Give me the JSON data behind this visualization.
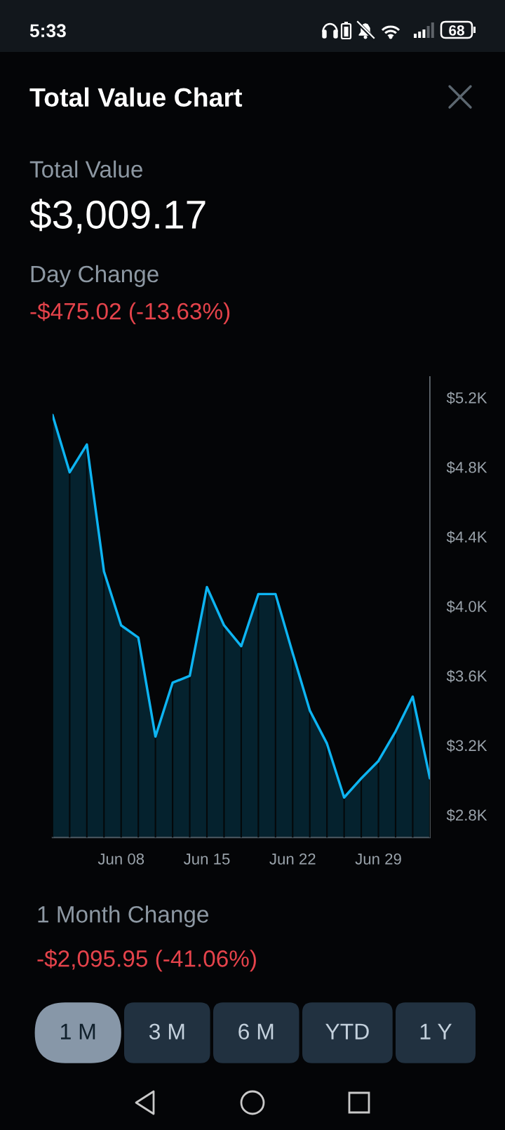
{
  "chart_data": {
    "type": "area",
    "title": "Total Value Chart",
    "annotations": [
      "5:33",
      "68",
      "Total Value",
      "$3,009.17",
      "Day Change",
      "-$475.02 (-13.63%)",
      "1 Month Change",
      "-$2,095.95 (-41.06%)",
      "1 M",
      "3 M",
      "6 M",
      "YTD",
      "1 Y"
    ],
    "categories": [
      null,
      null,
      null,
      null,
      "Jun 08",
      null,
      null,
      null,
      null,
      "Jun 15",
      null,
      null,
      null,
      null,
      "Jun 22",
      null,
      null,
      null,
      null,
      "Jun 29",
      null,
      null,
      null
    ],
    "series": [
      {
        "color": "#0db4f2",
        "values": [
          5100,
          4770,
          4930,
          4200,
          3890,
          3820,
          3250,
          3560,
          3600,
          4110,
          3890,
          3770,
          4070,
          4070,
          3730,
          3400,
          3210,
          2900,
          3010,
          3110,
          3280,
          3480,
          3010
        ]
      }
    ],
    "ylim": [
      2670,
      5320
    ],
    "yticks": [
      {
        "value": 2800,
        "label": "$2.8K"
      },
      {
        "value": 3200,
        "label": "$3.2K"
      },
      {
        "value": 3600,
        "label": "$3.6K"
      },
      {
        "value": 4000,
        "label": "$4.0K"
      },
      {
        "value": 4400,
        "label": "$4.4K"
      },
      {
        "value": 4800,
        "label": "$4.8K"
      },
      {
        "value": 5200,
        "label": "$5.2K"
      }
    ],
    "grid": "x"
  }
}
